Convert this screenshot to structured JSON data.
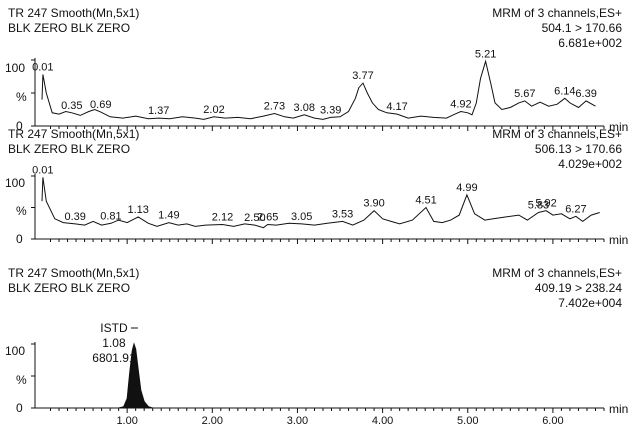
{
  "chart_data": [
    {
      "type": "line",
      "header_left": [
        "TR 247  Smooth(Mn,5x1)",
        "BLK ZERO BLK ZERO"
      ],
      "header_right": [
        "MRM of 3 channels,ES+",
        "504.1 > 170.66",
        "6.681e+002"
      ],
      "y_ticks": [
        "100",
        "%",
        "0"
      ],
      "x_unit": "min",
      "xlim": [
        0.0,
        6.6
      ],
      "ylim": [
        0,
        100
      ],
      "series": [
        {
          "x": [
            0.0,
            0.01,
            0.05,
            0.12,
            0.2,
            0.28,
            0.35,
            0.45,
            0.55,
            0.62,
            0.69,
            0.8,
            0.95,
            1.1,
            1.25,
            1.37,
            1.5,
            1.65,
            1.8,
            1.9,
            2.02,
            2.15,
            2.3,
            2.45,
            2.6,
            2.73,
            2.85,
            2.95,
            3.08,
            3.2,
            3.3,
            3.39,
            3.5,
            3.6,
            3.68,
            3.72,
            3.77,
            3.82,
            3.88,
            3.95,
            4.05,
            4.17,
            4.3,
            4.45,
            4.6,
            4.75,
            4.85,
            4.92,
            5.0,
            5.05,
            5.1,
            5.15,
            5.21,
            5.27,
            5.32,
            5.4,
            5.5,
            5.6,
            5.67,
            5.75,
            5.85,
            5.95,
            6.05,
            6.14,
            6.2,
            6.3,
            6.39,
            6.5
          ],
          "y": [
            40,
            78,
            50,
            20,
            18,
            22,
            20,
            16,
            22,
            25,
            21,
            14,
            12,
            15,
            11,
            12,
            11,
            14,
            12,
            10,
            14,
            12,
            13,
            11,
            15,
            19,
            14,
            12,
            17,
            12,
            10,
            13,
            14,
            22,
            42,
            58,
            65,
            50,
            35,
            25,
            20,
            18,
            12,
            15,
            13,
            12,
            18,
            22,
            20,
            17,
            35,
            72,
            98,
            65,
            35,
            25,
            28,
            35,
            38,
            30,
            36,
            30,
            33,
            42,
            35,
            28,
            38,
            30
          ],
          "peak_labels": [
            {
              "x": 0.01,
              "y": 78,
              "text": "0.01"
            },
            {
              "x": 0.35,
              "y": 20,
              "text": "0.35"
            },
            {
              "x": 0.69,
              "y": 21,
              "text": "0.69"
            },
            {
              "x": 1.37,
              "y": 12,
              "text": "1.37"
            },
            {
              "x": 2.02,
              "y": 14,
              "text": "2.02"
            },
            {
              "x": 2.73,
              "y": 19,
              "text": "2.73"
            },
            {
              "x": 3.08,
              "y": 17,
              "text": "3.08"
            },
            {
              "x": 3.39,
              "y": 13,
              "text": "3.39"
            },
            {
              "x": 3.77,
              "y": 65,
              "text": "3.77"
            },
            {
              "x": 4.17,
              "y": 18,
              "text": "4.17"
            },
            {
              "x": 4.92,
              "y": 22,
              "text": "4.92"
            },
            {
              "x": 5.21,
              "y": 98,
              "text": "5.21"
            },
            {
              "x": 5.67,
              "y": 38,
              "text": "5.67"
            },
            {
              "x": 6.14,
              "y": 42,
              "text": "6.14"
            },
            {
              "x": 6.39,
              "y": 38,
              "text": "6.39"
            }
          ]
        }
      ]
    },
    {
      "type": "line",
      "header_left": [
        "TR 247  Smooth(Mn,5x1)",
        "BLK ZERO BLK ZERO"
      ],
      "header_right": [
        "MRM of 3 channels,ES+",
        "506.13 > 170.66",
        "4.029e+002"
      ],
      "y_ticks": [
        "100",
        "%",
        "0"
      ],
      "x_unit": "min",
      "xlim": [
        0.0,
        6.6
      ],
      "ylim": [
        0,
        100
      ],
      "series": [
        {
          "x": [
            0.0,
            0.01,
            0.05,
            0.15,
            0.25,
            0.39,
            0.5,
            0.6,
            0.7,
            0.81,
            0.9,
            1.0,
            1.13,
            1.25,
            1.35,
            1.49,
            1.6,
            1.7,
            1.8,
            1.92,
            2.12,
            2.25,
            2.38,
            2.5,
            2.6,
            2.65,
            2.75,
            2.9,
            3.05,
            3.2,
            3.35,
            3.53,
            3.65,
            3.78,
            3.9,
            4.0,
            4.1,
            4.2,
            4.35,
            4.51,
            4.6,
            4.7,
            4.8,
            4.9,
            4.99,
            5.08,
            5.2,
            5.3,
            5.45,
            5.6,
            5.7,
            5.83,
            5.92,
            6.0,
            6.1,
            6.2,
            6.27,
            6.35,
            6.45,
            6.55
          ],
          "y": [
            60,
            98,
            60,
            32,
            26,
            24,
            22,
            28,
            22,
            25,
            30,
            26,
            35,
            25,
            20,
            26,
            22,
            24,
            20,
            22,
            23,
            20,
            24,
            22,
            18,
            23,
            22,
            25,
            24,
            22,
            25,
            28,
            22,
            30,
            45,
            32,
            28,
            24,
            30,
            50,
            28,
            26,
            30,
            38,
            70,
            40,
            30,
            32,
            35,
            38,
            30,
            42,
            45,
            38,
            40,
            32,
            36,
            28,
            38,
            42
          ]
        }
      ],
      "peak_labels": [
        {
          "x": 0.01,
          "y": 98,
          "text": "0.01"
        },
        {
          "x": 0.39,
          "y": 24,
          "text": "0.39"
        },
        {
          "x": 0.81,
          "y": 25,
          "text": "0.81"
        },
        {
          "x": 1.13,
          "y": 35,
          "text": "1.13"
        },
        {
          "x": 1.49,
          "y": 26,
          "text": "1.49"
        },
        {
          "x": 2.12,
          "y": 23,
          "text": "2.12"
        },
        {
          "x": 2.5,
          "y": 22,
          "text": "2.50"
        },
        {
          "x": 2.65,
          "y": 23,
          "text": "2.65"
        },
        {
          "x": 3.05,
          "y": 24,
          "text": "3.05"
        },
        {
          "x": 3.53,
          "y": 28,
          "text": "3.53"
        },
        {
          "x": 3.9,
          "y": 45,
          "text": "3.90"
        },
        {
          "x": 4.51,
          "y": 50,
          "text": "4.51"
        },
        {
          "x": 4.99,
          "y": 70,
          "text": "4.99"
        },
        {
          "x": 5.83,
          "y": 42,
          "text": "5.83"
        },
        {
          "x": 5.92,
          "y": 45,
          "text": "5.92"
        },
        {
          "x": 6.27,
          "y": 36,
          "text": "6.27"
        }
      ]
    },
    {
      "type": "area",
      "header_left": [
        "TR 247  Smooth(Mn,5x1)",
        "BLK ZERO BLK ZERO"
      ],
      "header_right": [
        "MRM of 3 channels,ES+",
        "409.19 > 238.24",
        "7.402e+004"
      ],
      "y_ticks": [
        "100",
        "%",
        "0"
      ],
      "x_unit": "min",
      "xlim": [
        0.0,
        6.6
      ],
      "ylim": [
        0,
        100
      ],
      "x_ticks": [
        1.0,
        2.0,
        3.0,
        4.0,
        5.0,
        6.0
      ],
      "x_tick_labels": [
        "1.00",
        "2.00",
        "3.00",
        "4.00",
        "5.00",
        "6.00"
      ],
      "series": [
        {
          "x": [
            0.0,
            0.9,
            0.96,
            1.0,
            1.03,
            1.06,
            1.08,
            1.1,
            1.13,
            1.16,
            1.2,
            1.25,
            1.3,
            6.6
          ],
          "y": [
            0,
            0,
            2,
            15,
            55,
            90,
            100,
            92,
            60,
            28,
            10,
            2,
            0,
            0
          ]
        }
      ],
      "peak_annotation": {
        "x": 1.08,
        "y": 100,
        "lines": [
          "ISTD",
          "1.08",
          "6801.91"
        ]
      }
    }
  ]
}
